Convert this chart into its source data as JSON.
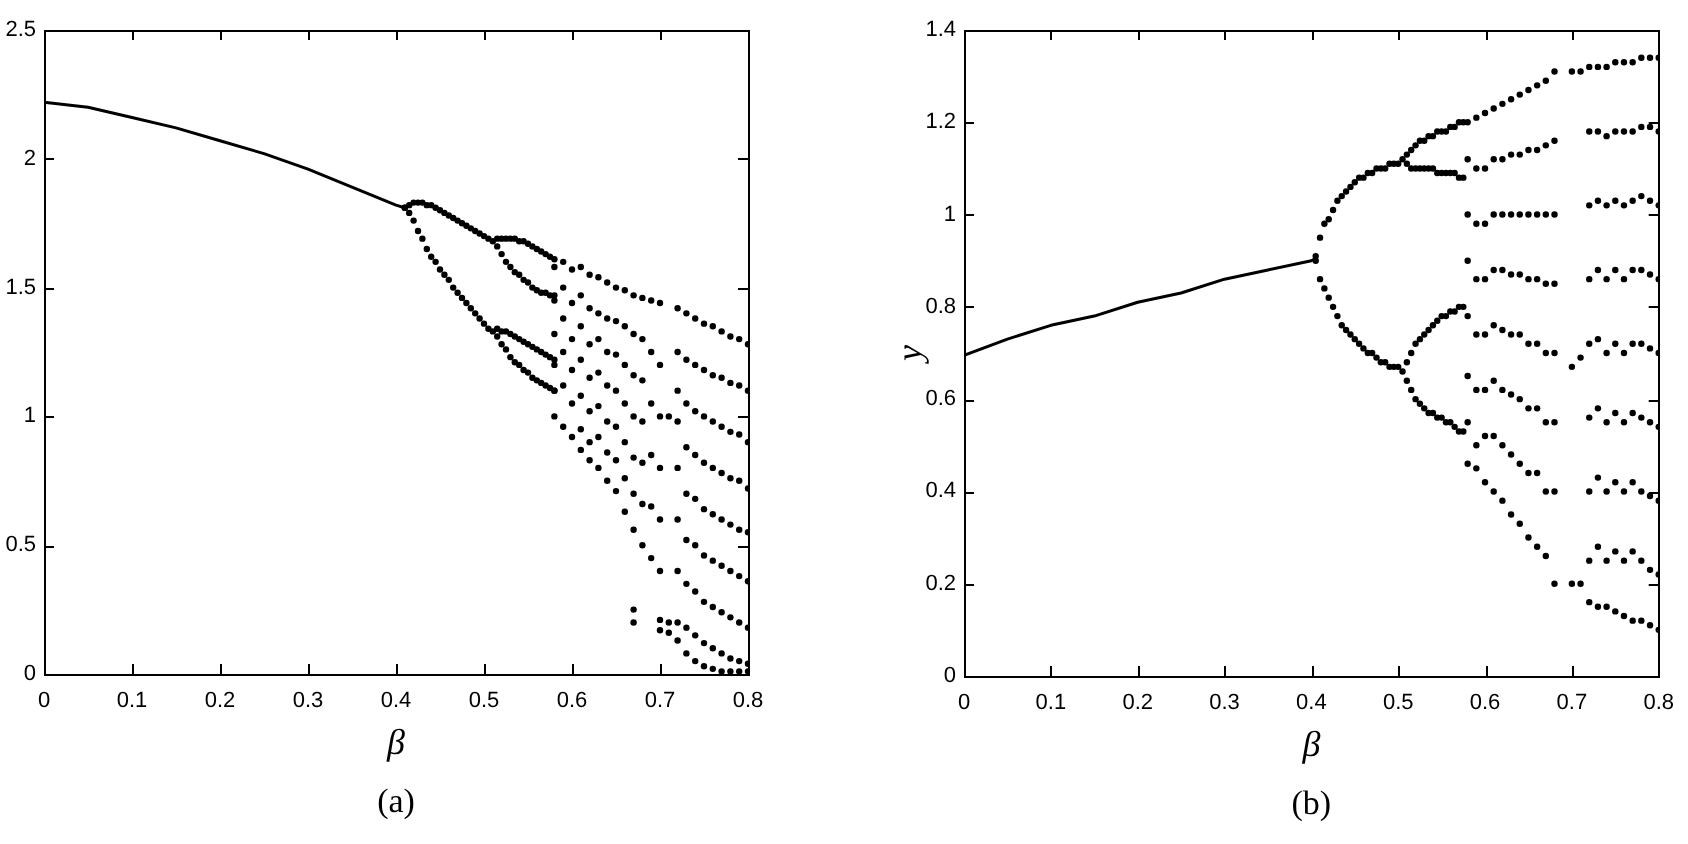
{
  "chart_data": [
    {
      "type": "scatter",
      "xlabel": "β",
      "annotations": [
        "(a)"
      ],
      "xlim": [
        0,
        0.8
      ],
      "ylim": [
        0,
        2.5
      ],
      "xticks": [
        0,
        0.1,
        0.2,
        0.3,
        0.4,
        0.5,
        0.6,
        0.7,
        0.8
      ],
      "yticks": [
        0,
        0.5,
        1,
        1.5,
        2,
        2.5
      ],
      "marker": "circle",
      "series": [
        {
          "type": "line",
          "marker": "none",
          "color": "#000000",
          "x": [
            0,
            0.05,
            0.1,
            0.15,
            0.2,
            0.25,
            0.3,
            0.35,
            0.4,
            0.41
          ],
          "values": [
            2.22,
            2.2,
            2.16,
            2.12,
            2.07,
            2.02,
            1.96,
            1.89,
            1.82,
            1.81
          ]
        },
        {
          "color": "#000000",
          "x": [
            0.41,
            0.415,
            0.42,
            0.425,
            0.43,
            0.435,
            0.44,
            0.445,
            0.45,
            0.455,
            0.46,
            0.465,
            0.47,
            0.475,
            0.48,
            0.485,
            0.49,
            0.495,
            0.5,
            0.505,
            0.51,
            0.41,
            0.415,
            0.42,
            0.425,
            0.43,
            0.435,
            0.44,
            0.445,
            0.45,
            0.455,
            0.46,
            0.465,
            0.47,
            0.475,
            0.48,
            0.485,
            0.49,
            0.495,
            0.5,
            0.505,
            0.51,
            0.515,
            0.52,
            0.525,
            0.53,
            0.535,
            0.54,
            0.545,
            0.55,
            0.555,
            0.56,
            0.565,
            0.57,
            0.575,
            0.58,
            0.515,
            0.52,
            0.525,
            0.53,
            0.535,
            0.54,
            0.545,
            0.55,
            0.555,
            0.56,
            0.565,
            0.57,
            0.575,
            0.58,
            0.515,
            0.52,
            0.525,
            0.53,
            0.535,
            0.54,
            0.545,
            0.55,
            0.555,
            0.56,
            0.565,
            0.57,
            0.575,
            0.58,
            0.515,
            0.52,
            0.525,
            0.53,
            0.535,
            0.54,
            0.545,
            0.55,
            0.555,
            0.56,
            0.565,
            0.57,
            0.575,
            0.58,
            0.58,
            0.58,
            0.58,
            0.58,
            0.58,
            0.58,
            0.59,
            0.59,
            0.59,
            0.59,
            0.59,
            0.59,
            0.6,
            0.6,
            0.6,
            0.6,
            0.6,
            0.6,
            0.61,
            0.61,
            0.61,
            0.61,
            0.61,
            0.61,
            0.61,
            0.62,
            0.62,
            0.62,
            0.62,
            0.62,
            0.62,
            0.62,
            0.63,
            0.63,
            0.63,
            0.63,
            0.63,
            0.63,
            0.63,
            0.64,
            0.64,
            0.64,
            0.64,
            0.64,
            0.64,
            0.64,
            0.65,
            0.65,
            0.65,
            0.65,
            0.65,
            0.65,
            0.65,
            0.66,
            0.66,
            0.66,
            0.66,
            0.66,
            0.66,
            0.66,
            0.67,
            0.67,
            0.67,
            0.67,
            0.67,
            0.67,
            0.67,
            0.67,
            0.67,
            0.68,
            0.68,
            0.68,
            0.68,
            0.68,
            0.68,
            0.68,
            0.69,
            0.69,
            0.69,
            0.69,
            0.69,
            0.69,
            0.7,
            0.7,
            0.7,
            0.7,
            0.7,
            0.7,
            0.7,
            0.7,
            0.71,
            0.71,
            0.71,
            0.72,
            0.72,
            0.72,
            0.72,
            0.72,
            0.72,
            0.72,
            0.72,
            0.72,
            0.73,
            0.73,
            0.73,
            0.73,
            0.73,
            0.73,
            0.73,
            0.73,
            0.73,
            0.74,
            0.74,
            0.74,
            0.74,
            0.74,
            0.74,
            0.74,
            0.74,
            0.74,
            0.75,
            0.75,
            0.75,
            0.75,
            0.75,
            0.75,
            0.75,
            0.75,
            0.75,
            0.76,
            0.76,
            0.76,
            0.76,
            0.76,
            0.76,
            0.76,
            0.76,
            0.76,
            0.77,
            0.77,
            0.77,
            0.77,
            0.77,
            0.77,
            0.77,
            0.77,
            0.77,
            0.78,
            0.78,
            0.78,
            0.78,
            0.78,
            0.78,
            0.78,
            0.78,
            0.78,
            0.79,
            0.79,
            0.79,
            0.79,
            0.79,
            0.79,
            0.79,
            0.79,
            0.79,
            0.8,
            0.8,
            0.8,
            0.8,
            0.8,
            0.8,
            0.8,
            0.8,
            0.8
          ],
          "values": [
            1.81,
            1.82,
            1.83,
            1.83,
            1.83,
            1.82,
            1.82,
            1.81,
            1.8,
            1.79,
            1.78,
            1.77,
            1.76,
            1.75,
            1.74,
            1.73,
            1.72,
            1.71,
            1.7,
            1.69,
            1.68,
            1.81,
            1.79,
            1.76,
            1.72,
            1.69,
            1.65,
            1.62,
            1.6,
            1.57,
            1.55,
            1.53,
            1.5,
            1.48,
            1.46,
            1.44,
            1.42,
            1.4,
            1.38,
            1.36,
            1.34,
            1.33,
            1.69,
            1.69,
            1.69,
            1.69,
            1.69,
            1.68,
            1.68,
            1.67,
            1.66,
            1.65,
            1.64,
            1.63,
            1.62,
            1.61,
            1.66,
            1.63,
            1.6,
            1.58,
            1.56,
            1.55,
            1.53,
            1.52,
            1.5,
            1.49,
            1.48,
            1.48,
            1.47,
            1.47,
            1.34,
            1.33,
            1.33,
            1.32,
            1.31,
            1.3,
            1.29,
            1.28,
            1.27,
            1.26,
            1.25,
            1.24,
            1.23,
            1.22,
            1.31,
            1.28,
            1.26,
            1.23,
            1.21,
            1.2,
            1.18,
            1.17,
            1.15,
            1.14,
            1.13,
            1.12,
            1.11,
            1.1,
            1.58,
            1.45,
            1.32,
            1.2,
            1.1,
            1.0,
            1.6,
            1.5,
            1.38,
            1.25,
            1.12,
            0.96,
            1.57,
            1.44,
            1.3,
            1.18,
            1.05,
            0.92,
            1.58,
            1.47,
            1.35,
            1.22,
            1.08,
            0.95,
            0.87,
            1.55,
            1.42,
            1.28,
            1.15,
            1.02,
            0.9,
            0.83,
            1.54,
            1.4,
            1.3,
            1.17,
            1.04,
            0.92,
            0.8,
            1.52,
            1.38,
            1.25,
            1.12,
            0.98,
            0.86,
            0.75,
            1.5,
            1.37,
            1.24,
            1.1,
            0.96,
            0.83,
            0.71,
            1.49,
            1.35,
            1.2,
            1.05,
            0.9,
            0.76,
            0.63,
            1.47,
            1.32,
            1.16,
            1.0,
            0.84,
            0.7,
            0.56,
            0.25,
            0.2,
            1.46,
            1.3,
            1.14,
            0.98,
            0.82,
            0.66,
            0.5,
            1.45,
            1.25,
            1.05,
            0.85,
            0.65,
            0.45,
            1.44,
            1.2,
            1.0,
            0.8,
            0.6,
            0.4,
            0.21,
            0.17,
            1.0,
            0.2,
            0.16,
            1.42,
            1.25,
            1.1,
            0.98,
            0.8,
            0.6,
            0.4,
            0.2,
            0.13,
            1.4,
            1.22,
            1.05,
            0.88,
            0.7,
            0.52,
            0.35,
            0.18,
            0.08,
            1.38,
            1.2,
            1.02,
            0.85,
            0.68,
            0.5,
            0.32,
            0.15,
            0.05,
            1.36,
            1.18,
            1.0,
            0.82,
            0.64,
            0.46,
            0.28,
            0.12,
            0.03,
            1.35,
            1.16,
            0.98,
            0.8,
            0.62,
            0.44,
            0.26,
            0.1,
            0.02,
            1.33,
            1.15,
            0.96,
            0.78,
            0.6,
            0.42,
            0.24,
            0.08,
            0.01,
            1.31,
            1.13,
            0.94,
            0.76,
            0.58,
            0.4,
            0.22,
            0.06,
            0.01,
            1.3,
            1.12,
            0.93,
            0.75,
            0.56,
            0.38,
            0.2,
            0.05,
            0.01,
            1.28,
            1.1,
            0.9,
            0.72,
            0.55,
            0.36,
            0.18,
            0.04,
            0.01
          ]
        }
      ]
    },
    {
      "type": "scatter",
      "xlabel": "β",
      "ylabel": "y",
      "annotations": [
        "(b)"
      ],
      "xlim": [
        0,
        0.8
      ],
      "ylim": [
        0,
        1.4
      ],
      "xticks": [
        0,
        0.1,
        0.2,
        0.3,
        0.4,
        0.5,
        0.6,
        0.7,
        0.8
      ],
      "yticks": [
        0,
        0.2,
        0.4,
        0.6,
        0.8,
        1,
        1.2,
        1.4
      ],
      "marker": "circle",
      "series": [
        {
          "type": "line",
          "marker": "none",
          "color": "#000000",
          "x": [
            0,
            0.05,
            0.1,
            0.15,
            0.2,
            0.25,
            0.3,
            0.35,
            0.4,
            0.405
          ],
          "values": [
            0.695,
            0.73,
            0.76,
            0.78,
            0.81,
            0.83,
            0.86,
            0.88,
            0.9,
            0.905
          ]
        },
        {
          "color": "#000000",
          "x": [
            0.405,
            0.41,
            0.415,
            0.42,
            0.425,
            0.43,
            0.435,
            0.44,
            0.445,
            0.45,
            0.455,
            0.46,
            0.465,
            0.47,
            0.475,
            0.48,
            0.485,
            0.49,
            0.495,
            0.5,
            0.505,
            0.405,
            0.41,
            0.415,
            0.42,
            0.425,
            0.43,
            0.435,
            0.44,
            0.445,
            0.45,
            0.455,
            0.46,
            0.465,
            0.47,
            0.475,
            0.48,
            0.485,
            0.49,
            0.495,
            0.5,
            0.505,
            0.51,
            0.515,
            0.52,
            0.525,
            0.53,
            0.535,
            0.54,
            0.545,
            0.55,
            0.555,
            0.56,
            0.565,
            0.57,
            0.575,
            0.51,
            0.515,
            0.52,
            0.525,
            0.53,
            0.535,
            0.54,
            0.545,
            0.55,
            0.555,
            0.56,
            0.565,
            0.57,
            0.575,
            0.51,
            0.515,
            0.52,
            0.525,
            0.53,
            0.535,
            0.54,
            0.545,
            0.55,
            0.555,
            0.56,
            0.565,
            0.57,
            0.575,
            0.51,
            0.515,
            0.52,
            0.525,
            0.53,
            0.535,
            0.54,
            0.545,
            0.55,
            0.555,
            0.56,
            0.565,
            0.57,
            0.575,
            0.58,
            0.58,
            0.58,
            0.58,
            0.58,
            0.58,
            0.58,
            0.58,
            0.59,
            0.59,
            0.59,
            0.59,
            0.59,
            0.59,
            0.59,
            0.59,
            0.6,
            0.6,
            0.6,
            0.6,
            0.6,
            0.6,
            0.6,
            0.6,
            0.61,
            0.61,
            0.61,
            0.61,
            0.61,
            0.61,
            0.61,
            0.61,
            0.62,
            0.62,
            0.62,
            0.62,
            0.62,
            0.62,
            0.62,
            0.62,
            0.63,
            0.63,
            0.63,
            0.63,
            0.63,
            0.63,
            0.63,
            0.63,
            0.64,
            0.64,
            0.64,
            0.64,
            0.64,
            0.64,
            0.64,
            0.64,
            0.65,
            0.65,
            0.65,
            0.65,
            0.65,
            0.65,
            0.65,
            0.65,
            0.66,
            0.66,
            0.66,
            0.66,
            0.66,
            0.66,
            0.66,
            0.66,
            0.67,
            0.67,
            0.67,
            0.67,
            0.67,
            0.67,
            0.67,
            0.67,
            0.68,
            0.68,
            0.68,
            0.68,
            0.68,
            0.68,
            0.68,
            0.68,
            0.7,
            0.7,
            0.7,
            0.71,
            0.71,
            0.71,
            0.72,
            0.72,
            0.72,
            0.72,
            0.72,
            0.72,
            0.72,
            0.72,
            0.72,
            0.73,
            0.73,
            0.73,
            0.73,
            0.73,
            0.73,
            0.73,
            0.73,
            0.73,
            0.74,
            0.74,
            0.74,
            0.74,
            0.74,
            0.74,
            0.74,
            0.74,
            0.74,
            0.75,
            0.75,
            0.75,
            0.75,
            0.75,
            0.75,
            0.75,
            0.75,
            0.75,
            0.76,
            0.76,
            0.76,
            0.76,
            0.76,
            0.76,
            0.76,
            0.76,
            0.76,
            0.77,
            0.77,
            0.77,
            0.77,
            0.77,
            0.77,
            0.77,
            0.77,
            0.77,
            0.78,
            0.78,
            0.78,
            0.78,
            0.78,
            0.78,
            0.78,
            0.78,
            0.78,
            0.79,
            0.79,
            0.79,
            0.79,
            0.79,
            0.79,
            0.79,
            0.79,
            0.79,
            0.8,
            0.8,
            0.8,
            0.8,
            0.8,
            0.8,
            0.8,
            0.8,
            0.8
          ],
          "values": [
            0.91,
            0.95,
            0.98,
            0.99,
            1.01,
            1.03,
            1.04,
            1.05,
            1.06,
            1.07,
            1.08,
            1.08,
            1.09,
            1.09,
            1.1,
            1.1,
            1.1,
            1.11,
            1.11,
            1.11,
            1.12,
            0.9,
            0.86,
            0.84,
            0.82,
            0.8,
            0.78,
            0.76,
            0.75,
            0.74,
            0.73,
            0.72,
            0.71,
            0.7,
            0.7,
            0.69,
            0.68,
            0.68,
            0.67,
            0.67,
            0.67,
            0.66,
            1.13,
            1.14,
            1.15,
            1.16,
            1.16,
            1.17,
            1.17,
            1.18,
            1.18,
            1.18,
            1.19,
            1.19,
            1.2,
            1.2,
            1.11,
            1.1,
            1.1,
            1.1,
            1.1,
            1.1,
            1.1,
            1.09,
            1.09,
            1.09,
            1.09,
            1.09,
            1.08,
            1.08,
            0.68,
            0.7,
            0.72,
            0.73,
            0.74,
            0.75,
            0.76,
            0.77,
            0.78,
            0.78,
            0.79,
            0.79,
            0.8,
            0.8,
            0.64,
            0.62,
            0.6,
            0.59,
            0.58,
            0.57,
            0.57,
            0.56,
            0.56,
            0.55,
            0.55,
            0.54,
            0.53,
            0.53,
            1.2,
            1.12,
            1.0,
            0.9,
            0.78,
            0.65,
            0.55,
            0.46,
            1.21,
            1.1,
            0.98,
            0.86,
            0.74,
            0.62,
            0.5,
            0.45,
            1.22,
            1.1,
            0.98,
            0.86,
            0.74,
            0.62,
            0.52,
            0.42,
            1.23,
            1.12,
            1.0,
            0.88,
            0.76,
            0.64,
            0.52,
            0.4,
            1.24,
            1.12,
            1.0,
            0.88,
            0.75,
            0.62,
            0.5,
            0.38,
            1.25,
            1.13,
            1.0,
            0.87,
            0.74,
            0.61,
            0.48,
            0.35,
            1.26,
            1.13,
            1.0,
            0.87,
            0.74,
            0.6,
            0.46,
            0.33,
            1.27,
            1.14,
            1.0,
            0.86,
            0.72,
            0.58,
            0.44,
            0.3,
            1.28,
            1.14,
            1.0,
            0.86,
            0.72,
            0.58,
            0.44,
            0.28,
            1.29,
            1.15,
            1.0,
            0.85,
            0.7,
            0.55,
            0.4,
            0.26,
            1.31,
            1.16,
            1.0,
            0.85,
            0.7,
            0.55,
            0.4,
            0.2,
            1.31,
            0.67,
            0.2,
            1.31,
            0.69,
            0.2,
            1.32,
            1.18,
            1.02,
            0.86,
            0.72,
            0.56,
            0.4,
            0.25,
            0.16,
            1.32,
            1.18,
            1.03,
            0.88,
            0.73,
            0.58,
            0.43,
            0.28,
            0.15,
            1.32,
            1.17,
            1.02,
            0.86,
            0.7,
            0.55,
            0.4,
            0.25,
            0.15,
            1.33,
            1.18,
            1.03,
            0.88,
            0.72,
            0.57,
            0.42,
            0.27,
            0.14,
            1.33,
            1.18,
            1.02,
            0.86,
            0.7,
            0.55,
            0.4,
            0.25,
            0.13,
            1.33,
            1.18,
            1.03,
            0.88,
            0.72,
            0.57,
            0.42,
            0.27,
            0.12,
            1.34,
            1.19,
            1.04,
            0.88,
            0.72,
            0.56,
            0.4,
            0.25,
            0.12,
            1.34,
            1.19,
            1.03,
            0.87,
            0.71,
            0.55,
            0.39,
            0.23,
            0.11,
            1.34,
            1.18,
            1.02,
            0.86,
            0.7,
            0.54,
            0.38,
            0.22,
            0.1
          ]
        }
      ]
    }
  ]
}
